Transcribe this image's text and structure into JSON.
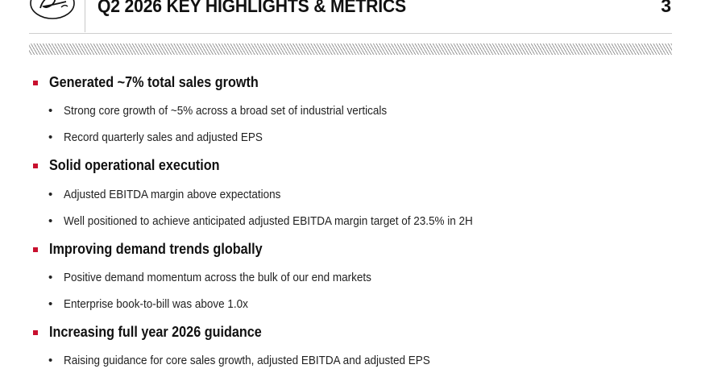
{
  "header": {
    "logo_text": "Gates",
    "title": "Q2 2026 KEY HIGHLIGHTS & METRICS",
    "page_number": "3"
  },
  "sections": [
    {
      "heading": "Generated ~7% total sales growth",
      "bullets": [
        "Strong core growth of ~5% across a broad set of industrial verticals",
        "Record quarterly sales and adjusted EPS"
      ]
    },
    {
      "heading": "Solid operational execution",
      "bullets": [
        "Adjusted EBITDA margin above expectations",
        "Well positioned to achieve anticipated adjusted EBITDA margin target of 23.5% in 2H"
      ]
    },
    {
      "heading": "Improving demand trends globally",
      "bullets": [
        "Positive demand momentum across the bulk of our end markets",
        "Enterprise book-to-bill was above 1.0x"
      ]
    },
    {
      "heading": "Increasing full year 2026 guidance",
      "bullets": [
        "Raising guidance for core sales growth, adjusted EBITDA and adjusted EPS"
      ]
    }
  ],
  "colors": {
    "accent": "#c8102e",
    "text": "#1a1a1a"
  }
}
